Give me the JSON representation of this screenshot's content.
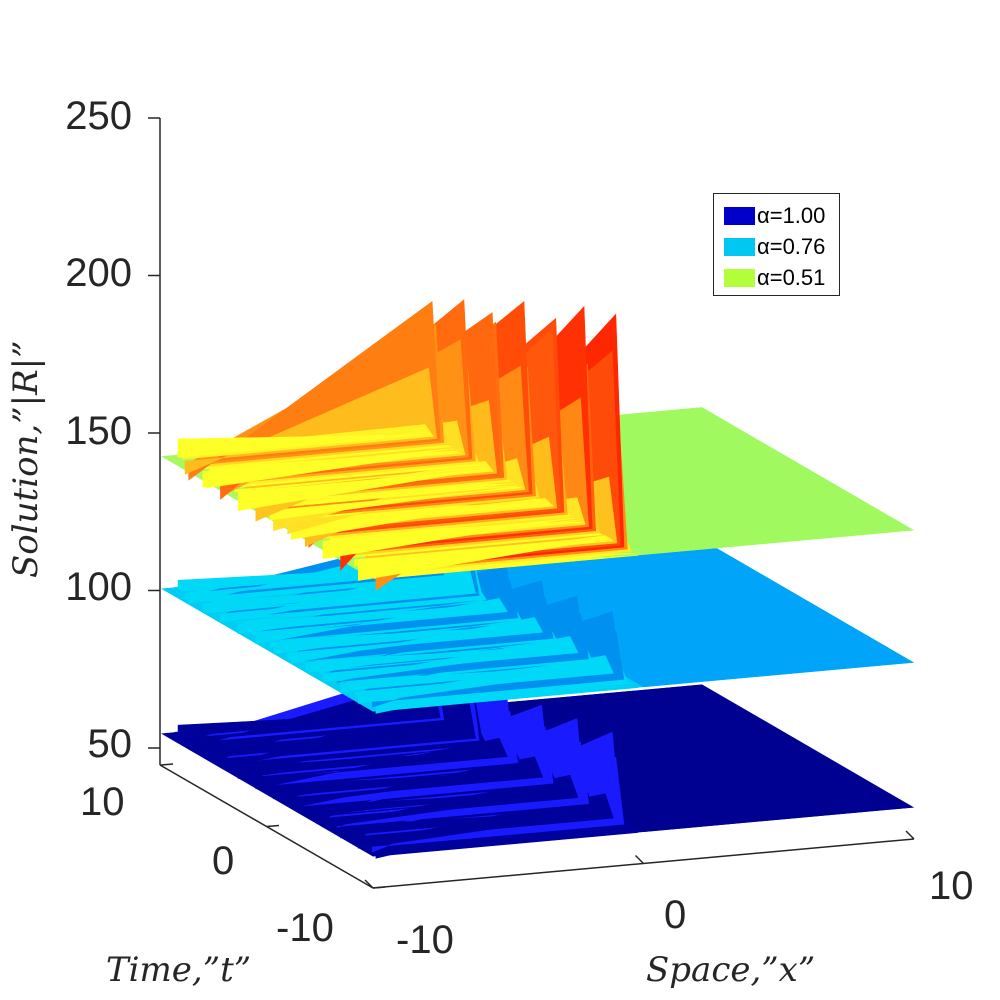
{
  "chart_data": {
    "type": "surface",
    "xlabel": "Space,”x”",
    "ylabel": "Time,”t”",
    "zlabel": "Solution,”|R|”",
    "xlim": [
      -10,
      10
    ],
    "ylim": [
      -10,
      10
    ],
    "zlim": [
      50,
      250
    ],
    "x_ticks": [
      "-10",
      "0",
      "10"
    ],
    "y_ticks": [
      "-10",
      "0",
      "10"
    ],
    "z_ticks": [
      "250",
      "200",
      "150",
      "100",
      "50"
    ],
    "legend_position": "top-right",
    "series": [
      {
        "name": "α=1.00",
        "color": "#0000c8",
        "base_level": 60,
        "peak_level": 90,
        "peak_count": 6
      },
      {
        "name": "α=0.76",
        "color": "#00c8f0",
        "base_level": 106,
        "peak_level": 128,
        "peak_count": 6
      },
      {
        "name": "α=0.51",
        "color": "#b4ff3c",
        "base_level": 148,
        "peak_level": 227,
        "peak_count": 7
      }
    ]
  }
}
